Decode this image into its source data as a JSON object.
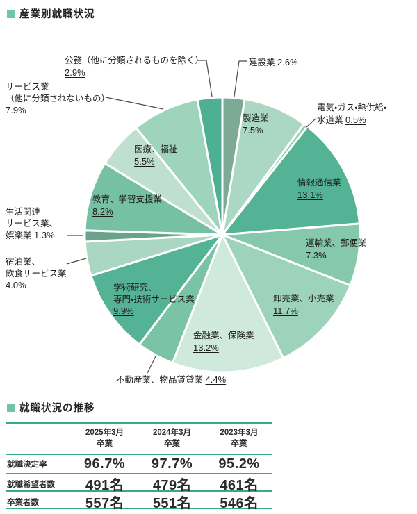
{
  "page": {
    "section1_title": "産業別就職状況",
    "section2_title": "就職状況の推移",
    "accent_color": "#6fc5a6",
    "rule_color": "#35a98b"
  },
  "chart_data": [
    {
      "type": "pie",
      "title": "産業別就職状況",
      "unit": "%",
      "start_angle_deg": 0,
      "direction": "clockwise",
      "slices": [
        {
          "name": "建設業",
          "value": 2.6,
          "pct": "2.6%",
          "color": "#7caa95",
          "name_lines": [
            "建設業"
          ],
          "pct_inline": true
        },
        {
          "name": "製造業",
          "value": 7.5,
          "pct": "7.5%",
          "color": "#abd8c4",
          "name_lines": [
            "製造業"
          ],
          "pct_inline": false
        },
        {
          "name": "電気・ガス・熱供給・水道業",
          "value": 0.5,
          "pct": "0.5%",
          "color": "#8fccb2",
          "name_lines": [
            "電気・ガス・熱供給・",
            "水道業"
          ],
          "pct_inline": true
        },
        {
          "name": "情報通信業",
          "value": 13.1,
          "pct": "13.1%",
          "color": "#54b295",
          "name_lines": [
            "情報通信業"
          ],
          "pct_inline": false
        },
        {
          "name": "運輸業、郵便業",
          "value": 7.3,
          "pct": "7.3%",
          "color": "#85c8ac",
          "name_lines": [
            "運輸業、郵便業"
          ],
          "pct_inline": false
        },
        {
          "name": "卸売業、小売業",
          "value": 11.7,
          "pct": "11.7%",
          "color": "#9cd3ba",
          "name_lines": [
            "卸売業、小売業"
          ],
          "pct_inline": false
        },
        {
          "name": "金融業、保険業",
          "value": 13.2,
          "pct": "13.2%",
          "color": "#cfe9dc",
          "name_lines": [
            "金融業、保険業"
          ],
          "pct_inline": false
        },
        {
          "name": "不動産業、物品賃貸業",
          "value": 4.4,
          "pct": "4.4%",
          "color": "#7bc3a6",
          "name_lines": [
            "不動産業、物品賃貸業"
          ],
          "pct_inline": true
        },
        {
          "name": "学術研究、専門・技術サービス業",
          "value": 9.9,
          "pct": "9.9%",
          "color": "#54b295",
          "name_lines": [
            "学術研究、",
            "専門・技術サービス業"
          ],
          "pct_inline": false
        },
        {
          "name": "宿泊業、飲食サービス業",
          "value": 4.0,
          "pct": "4.0%",
          "color": "#aad7c3",
          "name_lines": [
            "宿泊業、",
            "飲食サービス業"
          ],
          "pct_inline": false
        },
        {
          "name": "生活関連サービス業、娯楽業",
          "value": 1.3,
          "pct": "1.3%",
          "color": "#69a28d",
          "name_lines": [
            "生活関連",
            "サービス業、",
            "娯楽業"
          ],
          "pct_inline": true
        },
        {
          "name": "教育、学習支援業",
          "value": 8.2,
          "pct": "8.2%",
          "color": "#76c0a3",
          "name_lines": [
            "教育、学習支援業"
          ],
          "pct_inline": false
        },
        {
          "name": "医療、福祉",
          "value": 5.5,
          "pct": "5.5%",
          "color": "#bfe0d1",
          "name_lines": [
            "医療、福祉"
          ],
          "pct_inline": false
        },
        {
          "name": "サービス業（他に分類されないもの）",
          "value": 7.9,
          "pct": "7.9%",
          "color": "#9ed4bb",
          "name_lines": [
            "サービス業",
            "（他に分類されないもの）"
          ],
          "pct_inline": false
        },
        {
          "name": "公務（他に分類されるものを除く）",
          "value": 2.9,
          "pct": "2.9%",
          "color": "#4db093",
          "name_lines": [
            "公務（他に分類されるものを除く）"
          ],
          "pct_inline": false
        }
      ]
    },
    {
      "type": "table",
      "title": "就職状況の推移",
      "column_headers": [
        [
          "2025年3月",
          "卒業"
        ],
        [
          "2024年3月",
          "卒業"
        ],
        [
          "2023年3月",
          "卒業"
        ]
      ],
      "rows": [
        {
          "label": "就職決定率",
          "values": [
            "96.7%",
            "97.7%",
            "95.2%"
          ]
        },
        {
          "label": "就職希望者数",
          "values": [
            "491名",
            "479名",
            "461名"
          ]
        },
        {
          "label": "卒業者数",
          "values": [
            "557名",
            "551名",
            "546名"
          ]
        }
      ]
    }
  ]
}
